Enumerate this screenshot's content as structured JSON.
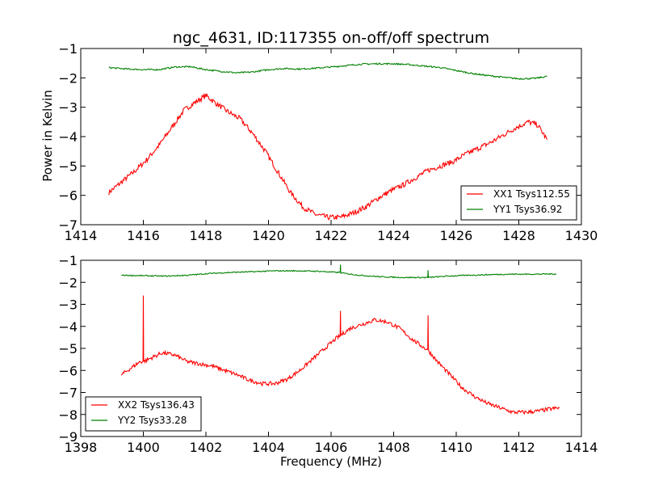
{
  "chart_data": [
    {
      "type": "line",
      "title": "ngc_4631, ID:117355 on-off/off spectrum",
      "xlabel": "",
      "ylabel": "Power in Kelvin",
      "xlim": [
        1414,
        1430
      ],
      "ylim": [
        -7,
        -1
      ],
      "xticks": [
        "1414",
        "1416",
        "1418",
        "1420",
        "1422",
        "1424",
        "1426",
        "1428",
        "1430"
      ],
      "yticks": [
        "−1",
        "−2",
        "−3",
        "−4",
        "−5",
        "−6",
        "−7"
      ],
      "legend_position": "bottom-right",
      "grid": false,
      "series": [
        {
          "name": "XX1 Tsys112.55",
          "color": "#ff0000",
          "x": [
            1414.9,
            1415.3,
            1415.7,
            1416.1,
            1416.5,
            1416.9,
            1417.3,
            1417.7,
            1418.0,
            1418.3,
            1418.7,
            1419.1,
            1419.5,
            1419.9,
            1420.3,
            1420.7,
            1421.1,
            1421.5,
            1421.9,
            1422.3,
            1422.7,
            1423.1,
            1423.5,
            1423.9,
            1424.3,
            1424.7,
            1425.1,
            1425.5,
            1425.9,
            1426.3,
            1426.7,
            1427.1,
            1427.5,
            1427.9,
            1428.3,
            1428.6,
            1428.9
          ],
          "y": [
            -5.9,
            -5.55,
            -5.2,
            -4.8,
            -4.3,
            -3.7,
            -3.1,
            -2.8,
            -2.6,
            -2.85,
            -3.15,
            -3.4,
            -3.9,
            -4.5,
            -5.2,
            -5.9,
            -6.4,
            -6.65,
            -6.75,
            -6.75,
            -6.6,
            -6.4,
            -6.1,
            -5.85,
            -5.65,
            -5.4,
            -5.15,
            -5.0,
            -4.85,
            -4.6,
            -4.4,
            -4.2,
            -3.95,
            -3.7,
            -3.5,
            -3.6,
            -4.1
          ]
        },
        {
          "name": "YY1 Tsys36.92",
          "color": "#008000",
          "x": [
            1414.9,
            1415.5,
            1416.0,
            1416.5,
            1417.0,
            1417.5,
            1418.0,
            1418.5,
            1419.0,
            1419.5,
            1420.0,
            1420.5,
            1421.0,
            1421.5,
            1422.0,
            1422.5,
            1423.0,
            1423.5,
            1424.0,
            1424.5,
            1425.0,
            1425.5,
            1426.0,
            1426.5,
            1427.0,
            1427.5,
            1428.0,
            1428.5,
            1428.9
          ],
          "y": [
            -1.65,
            -1.7,
            -1.72,
            -1.72,
            -1.63,
            -1.62,
            -1.72,
            -1.78,
            -1.83,
            -1.8,
            -1.72,
            -1.68,
            -1.7,
            -1.67,
            -1.63,
            -1.58,
            -1.53,
            -1.52,
            -1.52,
            -1.55,
            -1.6,
            -1.65,
            -1.75,
            -1.85,
            -1.92,
            -1.98,
            -2.03,
            -2.02,
            -1.95
          ]
        }
      ]
    },
    {
      "type": "line",
      "title": "",
      "xlabel": "Frequency (MHz)",
      "ylabel": "",
      "xlim": [
        1398,
        1414
      ],
      "ylim": [
        -9,
        -1
      ],
      "xticks": [
        "1398",
        "1400",
        "1402",
        "1404",
        "1406",
        "1408",
        "1410",
        "1412",
        "1414"
      ],
      "yticks": [
        "−1",
        "−2",
        "−3",
        "−4",
        "−5",
        "−6",
        "−7",
        "−8",
        "−9"
      ],
      "legend_position": "bottom-left",
      "grid": false,
      "series": [
        {
          "name": "XX2 Tsys136.43",
          "color": "#ff0000",
          "x": [
            1399.3,
            1399.6,
            1399.9,
            1399.99,
            1400.0,
            1400.01,
            1400.3,
            1400.6,
            1401.0,
            1401.4,
            1401.8,
            1402.2,
            1402.6,
            1403.0,
            1403.4,
            1403.8,
            1404.2,
            1404.6,
            1405.0,
            1405.4,
            1405.8,
            1406.2,
            1406.29,
            1406.3,
            1406.31,
            1406.6,
            1407.0,
            1407.4,
            1407.8,
            1408.2,
            1408.6,
            1409.0,
            1409.09,
            1409.1,
            1409.11,
            1409.4,
            1409.8,
            1410.2,
            1410.6,
            1411.0,
            1411.4,
            1411.8,
            1412.2,
            1412.6,
            1413.0,
            1413.3
          ],
          "y": [
            -6.2,
            -5.9,
            -5.6,
            -5.6,
            -2.6,
            -5.6,
            -5.4,
            -5.2,
            -5.3,
            -5.6,
            -5.7,
            -5.8,
            -6.0,
            -6.2,
            -6.45,
            -6.6,
            -6.6,
            -6.4,
            -6.0,
            -5.5,
            -5.0,
            -4.5,
            -4.45,
            -3.3,
            -4.4,
            -4.1,
            -3.9,
            -3.7,
            -3.8,
            -4.1,
            -4.6,
            -5.0,
            -5.05,
            -3.5,
            -5.1,
            -5.6,
            -6.2,
            -6.8,
            -7.2,
            -7.5,
            -7.7,
            -7.9,
            -7.9,
            -7.85,
            -7.75,
            -7.7
          ]
        },
        {
          "name": "YY2 Tsys33.28",
          "color": "#008000",
          "x": [
            1399.3,
            1400.0,
            1400.7,
            1401.4,
            1402.1,
            1402.8,
            1403.5,
            1404.2,
            1404.9,
            1405.6,
            1406.2,
            1406.29,
            1406.3,
            1406.31,
            1406.9,
            1407.6,
            1408.3,
            1409.0,
            1409.09,
            1409.1,
            1409.11,
            1409.7,
            1410.4,
            1411.1,
            1411.8,
            1412.5,
            1413.2
          ],
          "y": [
            -1.68,
            -1.7,
            -1.72,
            -1.68,
            -1.6,
            -1.55,
            -1.52,
            -1.48,
            -1.48,
            -1.5,
            -1.55,
            -1.55,
            -1.2,
            -1.57,
            -1.68,
            -1.75,
            -1.78,
            -1.78,
            -1.78,
            -1.45,
            -1.78,
            -1.72,
            -1.68,
            -1.65,
            -1.63,
            -1.63,
            -1.62
          ]
        }
      ]
    }
  ]
}
